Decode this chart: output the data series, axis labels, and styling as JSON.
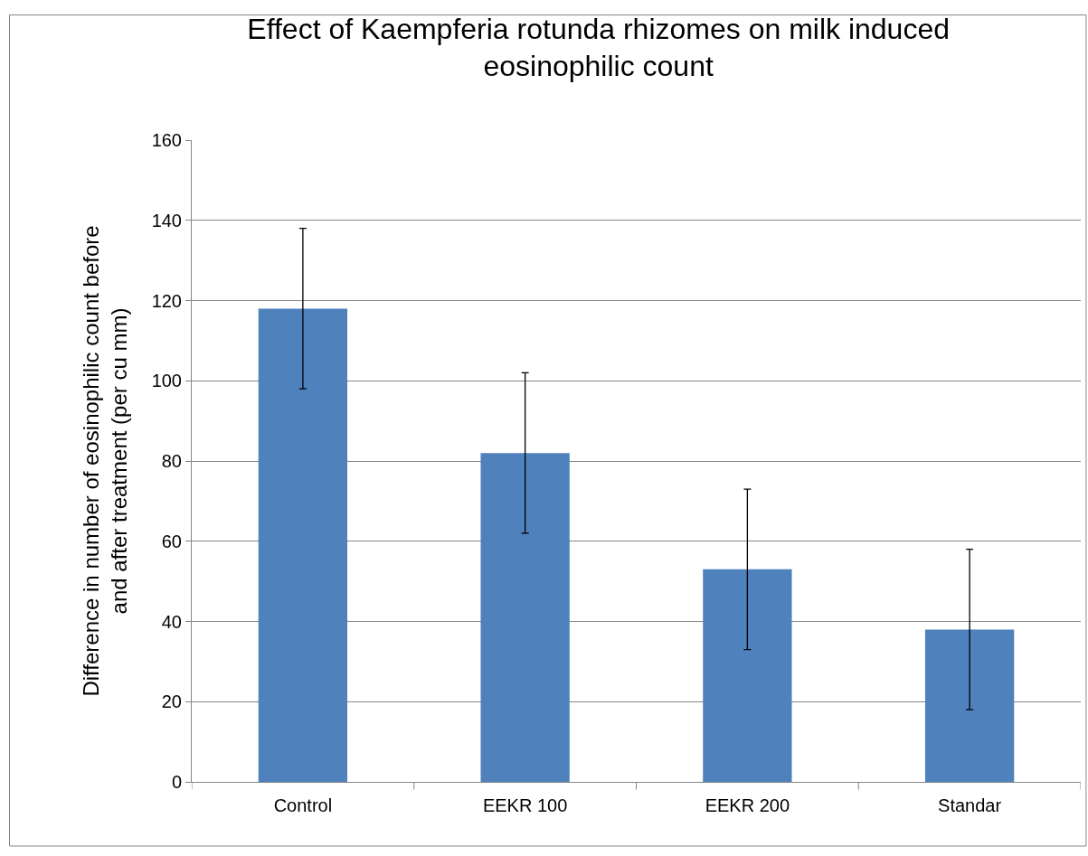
{
  "chart_data": {
    "type": "bar",
    "title": "Effect of Kaempferia rotunda rhizomes on milk induced eosinophilic count",
    "ylabel": "Difference in number of eosinophilic count before and after treatment (per cu mm)",
    "categories": [
      "Control",
      "EEKR 100",
      "EEKR 200",
      "Standar"
    ],
    "values": [
      118,
      82,
      53,
      38
    ],
    "errors": [
      20,
      20,
      20,
      20
    ],
    "color": "#4f81bd",
    "ylim": [
      0,
      160
    ],
    "yticks": [
      0,
      20,
      40,
      60,
      80,
      100,
      120,
      140,
      160
    ],
    "grid": "y"
  }
}
